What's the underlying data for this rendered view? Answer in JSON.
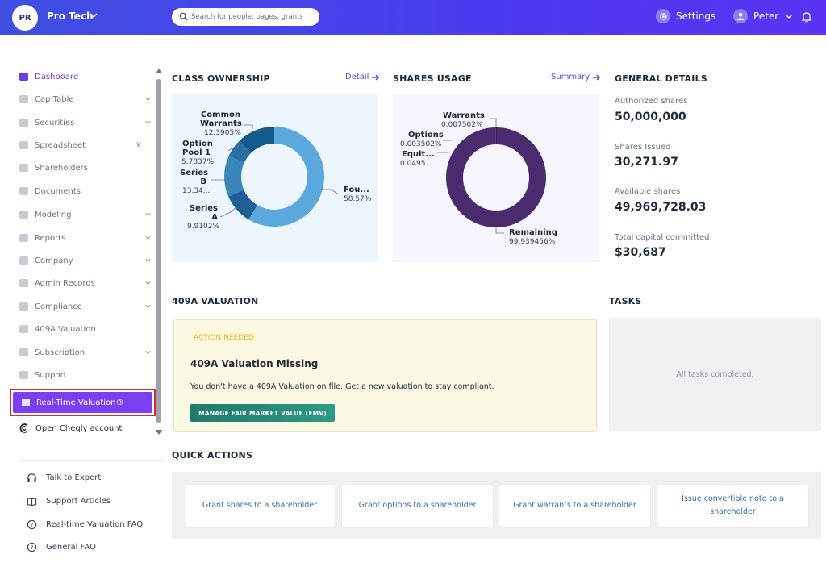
{
  "header": {
    "avatar_initials": "PR",
    "company_name": "Pro Tech",
    "search_placeholder": "Search for people, pages, grants",
    "settings_label": "Settings",
    "user_name": "Peter"
  },
  "sidebar": {
    "items": [
      {
        "label": "Dashboard",
        "icon": "dashboard-icon",
        "active": true,
        "chevron": false
      },
      {
        "label": "Cap Table",
        "icon": "pie-chart-icon",
        "chevron": true
      },
      {
        "label": "Securities",
        "icon": "clipboard-icon",
        "chevron": true
      },
      {
        "label": "Spreadsheet",
        "icon": "spreadsheet-icon",
        "chevron": false,
        "badge": "crown-icon"
      },
      {
        "label": "Shareholders",
        "icon": "users-icon",
        "chevron": false
      },
      {
        "label": "Documents",
        "icon": "folder-icon",
        "chevron": false
      },
      {
        "label": "Modeling",
        "icon": "bulb-icon",
        "chevron": true
      },
      {
        "label": "Reports",
        "icon": "report-icon",
        "chevron": true
      },
      {
        "label": "Company",
        "icon": "building-icon",
        "chevron": true
      },
      {
        "label": "Admin Records",
        "icon": "records-icon",
        "chevron": true
      },
      {
        "label": "Compliance",
        "icon": "shield-icon",
        "chevron": true
      },
      {
        "label": "409A Valuation",
        "icon": "bar-chart-icon",
        "chevron": false
      },
      {
        "label": "Subscription",
        "icon": "dollar-icon",
        "chevron": true
      },
      {
        "label": "Support",
        "icon": "support-icon",
        "chevron": false
      }
    ],
    "highlighted_item": "Real-Time Valuation®",
    "cheqly_label": "Open Cheqly account",
    "help_items": [
      "Talk to Expert",
      "Support Articles",
      "Real-time Valuation FAQ",
      "General FAQ"
    ]
  },
  "class_ownership": {
    "title": "CLASS OWNERSHIP",
    "link": "Detail",
    "labels": {
      "warrants": "Common\nWarrants",
      "warrants_pct": "12.3905%",
      "option_pool": "Option\nPool 1",
      "option_pool_pct": "5.7837%",
      "series_b": "Series\nB",
      "series_b_pct": "13.34...",
      "series_a": "Series\nA",
      "series_a_pct": "9.9102%",
      "founders": "Fou...",
      "founders_pct": "58.57%"
    }
  },
  "shares_usage": {
    "title": "SHARES USAGE",
    "link": "Summary",
    "labels": {
      "warrants": "Warrants",
      "warrants_pct": "0.007502%",
      "options": "Options",
      "options_pct": "0.003502%",
      "equity": "Equit...",
      "equity_pct": "0.0495...",
      "remaining": "Remaining",
      "remaining_pct": "99.939456%"
    }
  },
  "chart_data": [
    {
      "type": "pie",
      "title": "CLASS OWNERSHIP",
      "categories": [
        "Founders",
        "Series A",
        "Series B",
        "Option Pool 1",
        "Common Warrants"
      ],
      "values": [
        58.57,
        9.9102,
        13.34,
        5.7837,
        12.3905
      ],
      "colors": [
        "#5aa8dc",
        "#1f5f95",
        "#3a86ba",
        "#2a6ea6",
        "#145a8c"
      ]
    },
    {
      "type": "pie",
      "title": "SHARES USAGE",
      "categories": [
        "Remaining",
        "Warrants",
        "Options",
        "Equity"
      ],
      "values": [
        99.939456,
        0.007502,
        0.003502,
        0.0495
      ],
      "colors": [
        "#4a2b6e",
        "#2a1a44",
        "#2a1a44",
        "#2a1a44"
      ]
    }
  ],
  "general_details": {
    "title": "GENERAL DETAILS",
    "items": [
      {
        "label": "Authorized shares",
        "value": "50,000,000"
      },
      {
        "label": "Shares Issued",
        "value": "30,271.97"
      },
      {
        "label": "Available shares",
        "value": "49,969,728.03"
      },
      {
        "label": "Total capital committed",
        "value": "$30,687"
      }
    ]
  },
  "valuation": {
    "title": "409A VALUATION",
    "badge": "ACTION NEEDED",
    "card_title": "409A Valuation Missing",
    "description": "You don't have a 409A Valuation on file. Get a new valuation to stay compliant.",
    "button": "MANAGE FAIR MARKET VALUE (FMV)"
  },
  "tasks": {
    "title": "TASKS",
    "empty": "All tasks completed."
  },
  "quick_actions": {
    "title": "QUICK ACTIONS",
    "items": [
      "Grant shares to a shareholder",
      "Grant options to a shareholder",
      "Grant warrants to a shareholder",
      "Issue convertible note to a shareholder"
    ]
  }
}
